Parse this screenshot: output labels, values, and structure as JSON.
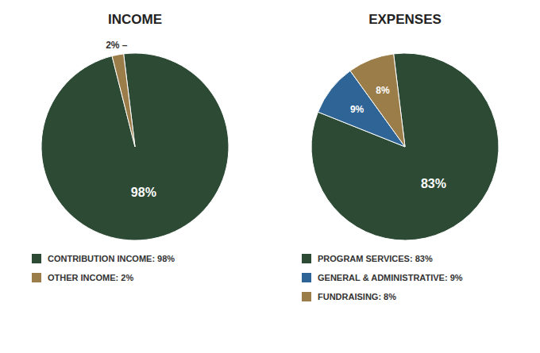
{
  "chart_data": [
    {
      "type": "pie",
      "title": "INCOME",
      "categories": [
        "CONTRIBUTION INCOME: 98%",
        "OTHER INCOME: 2%"
      ],
      "values": [
        98,
        2
      ],
      "value_labels": [
        "98%",
        "2% –"
      ],
      "colors": [
        "#2d4a35",
        "#9b7d4a"
      ],
      "data_labels": true,
      "legend": "bottom"
    },
    {
      "type": "pie",
      "title": "EXPENSES",
      "categories": [
        "PROGRAM SERVICES: 83%",
        "GENERAL & ADMINISTRATIVE: 9%",
        "FUNDRAISING: 8%"
      ],
      "values": [
        83,
        9,
        8
      ],
      "value_labels": [
        "83%",
        "9%",
        "8%"
      ],
      "colors": [
        "#2d4a35",
        "#2e6496",
        "#9b7d4a"
      ],
      "data_labels": true,
      "legend": "bottom"
    }
  ]
}
